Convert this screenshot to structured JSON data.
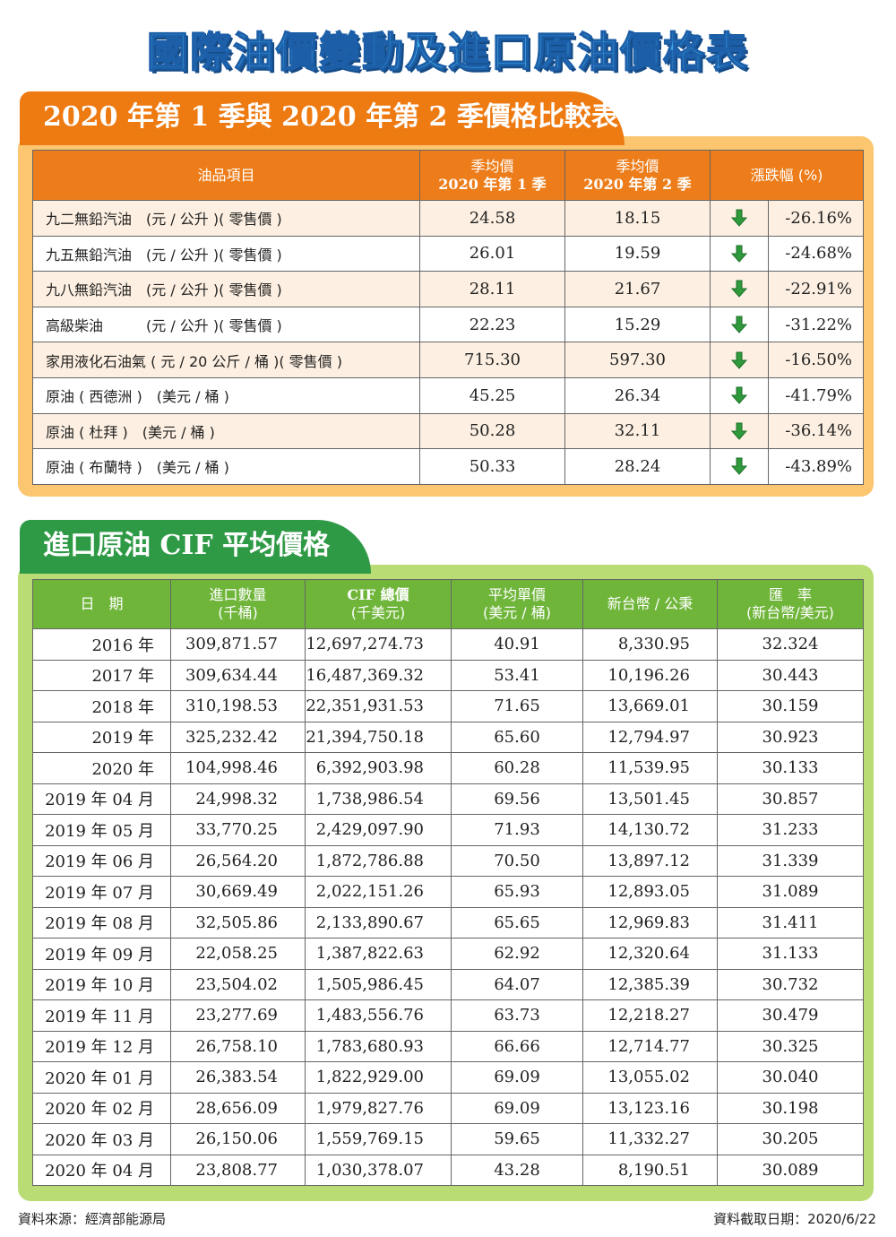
{
  "title": "國際油價變動及進口原油價格表",
  "section1": {
    "heading": "2020 年第 1 季與 2020 年第 2 季價格比較表",
    "headers": {
      "item": "油品項目",
      "q1_line1": "季均價",
      "q1_line2": "2020 年第 1 季",
      "q2_line1": "季均價",
      "q2_line2": "2020 年第 2 季",
      "change": "漲跌幅 (%)"
    },
    "rows": [
      {
        "item": "九二無鉛汽油　(元 / 公升 )( 零售價 )",
        "q1": "24.58",
        "q2": "18.15",
        "direction": "down-arrow-icon",
        "pct": "-26.16%"
      },
      {
        "item": "九五無鉛汽油　(元 / 公升 )( 零售價 )",
        "q1": "26.01",
        "q2": "19.59",
        "direction": "down-arrow-icon",
        "pct": "-24.68%"
      },
      {
        "item": "九八無鉛汽油　(元 / 公升 )( 零售價 )",
        "q1": "28.11",
        "q2": "21.67",
        "direction": "down-arrow-icon",
        "pct": "-22.91%"
      },
      {
        "item": "高級柴油　　　(元 / 公升 )( 零售價 )",
        "q1": "22.23",
        "q2": "15.29",
        "direction": "down-arrow-icon",
        "pct": "-31.22%"
      },
      {
        "item": "家用液化石油氣 ( 元 / 20 公斤 / 桶 )( 零售價 )",
        "q1": "715.30",
        "q2": "597.30",
        "direction": "down-arrow-icon",
        "pct": "-16.50%"
      },
      {
        "item": "原油 ( 西德洲 )　(美元 / 桶 )",
        "q1": "45.25",
        "q2": "26.34",
        "direction": "down-arrow-icon",
        "pct": "-41.79%"
      },
      {
        "item": "原油 ( 杜拜 )　(美元 / 桶 )",
        "q1": "50.28",
        "q2": "32.11",
        "direction": "down-arrow-icon",
        "pct": "-36.14%"
      },
      {
        "item": "原油 ( 布蘭特 )　(美元 / 桶 )",
        "q1": "50.33",
        "q2": "28.24",
        "direction": "down-arrow-icon",
        "pct": "-43.89%"
      }
    ]
  },
  "section2": {
    "heading": "進口原油 CIF 平均價格",
    "headers": {
      "date": "日　期",
      "qty_line1": "進口數量",
      "qty_line2": "(千桶)",
      "cif_line1": "CIF 總價",
      "cif_line2": "(千美元)",
      "avg_line1": "平均單價",
      "avg_line2": "(美元 / 桶)",
      "ntd": "新台幣 / 公秉",
      "rate_line1": "匯　率",
      "rate_line2": "(新台幣/美元)"
    },
    "rows": [
      {
        "date": "2016 年",
        "qty": "309,871.57",
        "cif": "12,697,274.73",
        "avg": "40.91",
        "ntd": "8,330.95",
        "rate": "32.324"
      },
      {
        "date": "2017 年",
        "qty": "309,634.44",
        "cif": "16,487,369.32",
        "avg": "53.41",
        "ntd": "10,196.26",
        "rate": "30.443"
      },
      {
        "date": "2018 年",
        "qty": "310,198.53",
        "cif": "22,351,931.53",
        "avg": "71.65",
        "ntd": "13,669.01",
        "rate": "30.159"
      },
      {
        "date": "2019 年",
        "qty": "325,232.42",
        "cif": "21,394,750.18",
        "avg": "65.60",
        "ntd": "12,794.97",
        "rate": "30.923"
      },
      {
        "date": "2020 年",
        "qty": "104,998.46",
        "cif": "6,392,903.98",
        "avg": "60.28",
        "ntd": "11,539.95",
        "rate": "30.133"
      },
      {
        "date": "2019 年 04 月",
        "qty": "24,998.32",
        "cif": "1,738,986.54",
        "avg": "69.56",
        "ntd": "13,501.45",
        "rate": "30.857"
      },
      {
        "date": "2019 年 05 月",
        "qty": "33,770.25",
        "cif": "2,429,097.90",
        "avg": "71.93",
        "ntd": "14,130.72",
        "rate": "31.233"
      },
      {
        "date": "2019 年 06 月",
        "qty": "26,564.20",
        "cif": "1,872,786.88",
        "avg": "70.50",
        "ntd": "13,897.12",
        "rate": "31.339"
      },
      {
        "date": "2019 年 07 月",
        "qty": "30,669.49",
        "cif": "2,022,151.26",
        "avg": "65.93",
        "ntd": "12,893.05",
        "rate": "31.089"
      },
      {
        "date": "2019 年 08 月",
        "qty": "32,505.86",
        "cif": "2,133,890.67",
        "avg": "65.65",
        "ntd": "12,969.83",
        "rate": "31.411"
      },
      {
        "date": "2019 年 09 月",
        "qty": "22,058.25",
        "cif": "1,387,822.63",
        "avg": "62.92",
        "ntd": "12,320.64",
        "rate": "31.133"
      },
      {
        "date": "2019 年 10 月",
        "qty": "23,504.02",
        "cif": "1,505,986.45",
        "avg": "64.07",
        "ntd": "12,385.39",
        "rate": "30.732"
      },
      {
        "date": "2019 年 11 月",
        "qty": "23,277.69",
        "cif": "1,483,556.76",
        "avg": "63.73",
        "ntd": "12,218.27",
        "rate": "30.479"
      },
      {
        "date": "2019 年 12 月",
        "qty": "26,758.10",
        "cif": "1,783,680.93",
        "avg": "66.66",
        "ntd": "12,714.77",
        "rate": "30.325"
      },
      {
        "date": "2020 年 01 月",
        "qty": "26,383.54",
        "cif": "1,822,929.00",
        "avg": "69.09",
        "ntd": "13,055.02",
        "rate": "30.040"
      },
      {
        "date": "2020 年 02 月",
        "qty": "28,656.09",
        "cif": "1,979,827.76",
        "avg": "69.09",
        "ntd": "13,123.16",
        "rate": "30.198"
      },
      {
        "date": "2020 年 03 月",
        "qty": "26,150.06",
        "cif": "1,559,769.15",
        "avg": "59.65",
        "ntd": "11,332.27",
        "rate": "30.205"
      },
      {
        "date": "2020 年 04 月",
        "qty": "23,808.77",
        "cif": "1,030,378.07",
        "avg": "43.28",
        "ntd": "8,190.51",
        "rate": "30.089"
      }
    ]
  },
  "footer": {
    "source": "資料來源：經濟部能源局",
    "date": "資料截取日期：2020/6/22"
  },
  "colors": {
    "title_blue": "#3fa9e8",
    "orange": "#ee7a12",
    "orange_panel": "#fbc66f",
    "green": "#2f9a46",
    "green_header": "#6fb53a",
    "green_panel": "#b9dc74",
    "arrow_green": "#2e9a3c"
  }
}
